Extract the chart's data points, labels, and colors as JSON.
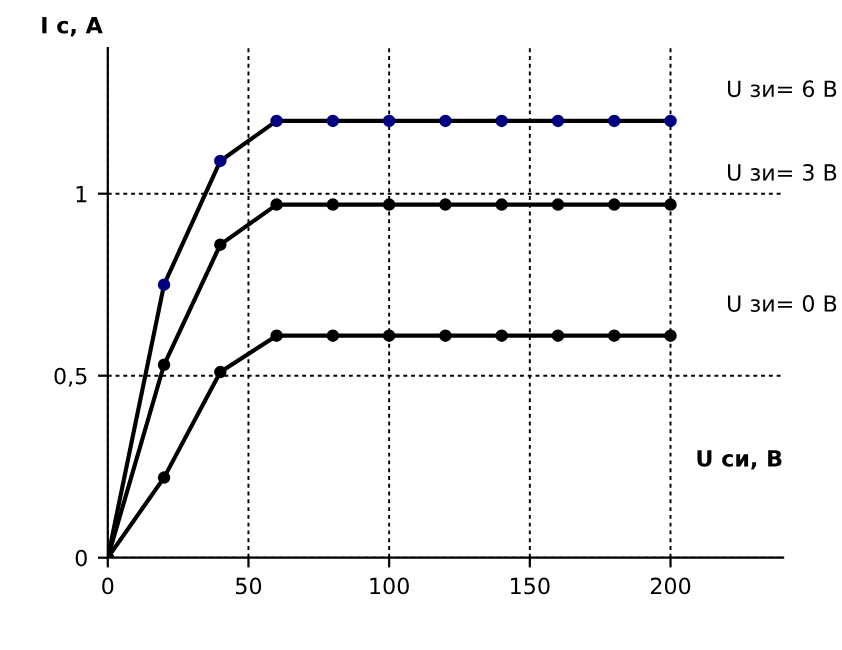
{
  "chart_data": {
    "type": "line",
    "xlabel": "U си, В",
    "ylabel": "I с, А",
    "x": [
      0,
      20,
      40,
      60,
      80,
      100,
      120,
      140,
      160,
      180,
      200
    ],
    "series": [
      {
        "name": "U зи= 6 В",
        "color": "#000080",
        "values": [
          0,
          0.75,
          1.09,
          1.2,
          1.2,
          1.2,
          1.2,
          1.2,
          1.2,
          1.2,
          1.2
        ]
      },
      {
        "name": "U зи= 3 В",
        "color": "#000000",
        "values": [
          0,
          0.53,
          0.86,
          0.97,
          0.97,
          0.97,
          0.97,
          0.97,
          0.97,
          0.97,
          0.97
        ]
      },
      {
        "name": "U зи= 0 В",
        "color": "#000000",
        "values": [
          0,
          0.22,
          0.51,
          0.61,
          0.61,
          0.61,
          0.61,
          0.61,
          0.61,
          0.61,
          0.61
        ]
      }
    ],
    "xlim": [
      0,
      240
    ],
    "ylim": [
      0,
      1.4
    ],
    "xticks": [
      0,
      50,
      100,
      150,
      200
    ],
    "yticks": [
      0,
      {
        "value": 0.5,
        "label": "0,5"
      },
      1
    ],
    "grid": true,
    "marker": "circle",
    "line_style": "solid",
    "legend": false
  }
}
